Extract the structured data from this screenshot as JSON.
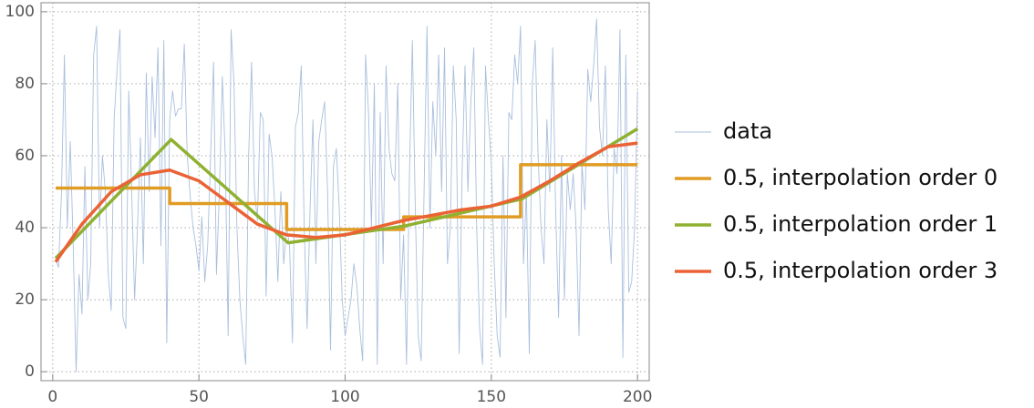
{
  "chart_data": {
    "type": "line",
    "xlim": [
      -4,
      204
    ],
    "ylim": [
      -2.5,
      102.5
    ],
    "xticks": [
      0,
      50,
      100,
      150,
      200
    ],
    "yticks": [
      0,
      20,
      40,
      60,
      80,
      100
    ],
    "grid": true,
    "series": [
      {
        "name": "data",
        "color": "#a9bfdd",
        "x": [
          1,
          2,
          3,
          4,
          5,
          6,
          7,
          8,
          9,
          10,
          11,
          12,
          13,
          14,
          15,
          16,
          17,
          18,
          19,
          20,
          21,
          22,
          23,
          24,
          25,
          26,
          27,
          28,
          29,
          30,
          31,
          32,
          33,
          34,
          35,
          36,
          37,
          38,
          39,
          40,
          41,
          42,
          43,
          44,
          45,
          46,
          47,
          48,
          49,
          50,
          51,
          52,
          53,
          54,
          55,
          56,
          57,
          58,
          59,
          60,
          61,
          62,
          63,
          64,
          65,
          66,
          67,
          68,
          69,
          70,
          71,
          72,
          73,
          74,
          75,
          76,
          77,
          78,
          79,
          80,
          81,
          82,
          83,
          84,
          85,
          86,
          87,
          88,
          89,
          90,
          91,
          92,
          93,
          94,
          95,
          96,
          97,
          98,
          99,
          100,
          101,
          102,
          103,
          104,
          105,
          106,
          107,
          108,
          109,
          110,
          111,
          112,
          113,
          114,
          115,
          116,
          117,
          118,
          119,
          120,
          121,
          122,
          123,
          124,
          125,
          126,
          127,
          128,
          129,
          130,
          131,
          132,
          133,
          134,
          135,
          136,
          137,
          138,
          139,
          140,
          141,
          142,
          143,
          144,
          145,
          146,
          147,
          148,
          149,
          150,
          151,
          152,
          153,
          154,
          155,
          156,
          157,
          158,
          159,
          160,
          161,
          162,
          163,
          164,
          165,
          166,
          167,
          168,
          169,
          170,
          171,
          172,
          173,
          174,
          175,
          176,
          177,
          178,
          179,
          180,
          181,
          182,
          183,
          184,
          185,
          186,
          187,
          188,
          189,
          190,
          191,
          192,
          193,
          194,
          195,
          196,
          197,
          198,
          199,
          200
        ],
        "values": [
          31,
          29,
          50,
          88,
          40,
          64,
          35,
          0,
          27,
          16,
          57,
          20,
          30,
          88,
          96,
          40,
          60,
          50,
          27,
          17,
          70,
          84,
          95,
          15,
          12,
          78,
          50,
          20,
          40,
          65,
          30,
          83,
          50,
          82,
          65,
          90,
          35,
          92,
          8,
          70,
          78,
          71,
          73,
          73,
          91,
          60,
          49,
          40,
          35,
          28,
          43,
          25,
          35,
          60,
          86,
          27,
          50,
          82,
          60,
          10,
          95,
          80,
          40,
          20,
          10,
          2,
          60,
          86,
          50,
          42,
          72,
          70,
          21,
          66,
          60,
          45,
          25,
          50,
          30,
          40,
          35,
          8,
          68,
          72,
          85,
          40,
          12,
          45,
          70,
          30,
          64,
          70,
          75,
          50,
          6,
          57,
          62,
          45,
          20,
          10,
          15,
          20,
          30,
          24,
          12,
          3,
          88,
          72,
          40,
          80,
          2,
          72,
          30,
          85,
          62,
          55,
          53,
          80,
          20,
          38,
          2,
          55,
          92,
          45,
          10,
          3,
          50,
          96,
          40,
          75,
          60,
          88,
          50,
          90,
          30,
          40,
          85,
          70,
          5,
          55,
          85,
          50,
          75,
          90,
          40,
          12,
          2,
          85,
          70,
          58,
          30,
          10,
          4,
          60,
          15,
          72,
          70,
          88,
          80,
          96,
          30,
          50,
          5,
          80,
          92,
          60,
          40,
          30,
          70,
          50,
          90,
          45,
          15,
          60,
          20,
          55,
          45,
          55,
          40,
          10,
          58,
          45,
          84,
          75,
          85,
          98,
          68,
          60,
          85,
          45,
          30,
          62,
          55,
          95,
          4,
          88,
          22,
          25,
          40,
          78
        ]
      },
      {
        "name": "0.5, interpolation order 0",
        "color": "#e09c24",
        "x": [
          1,
          40,
          40,
          80,
          80,
          120,
          120,
          160,
          160,
          200
        ],
        "values": [
          51,
          51,
          46.7,
          46.7,
          39.5,
          39.5,
          43,
          43,
          57.5,
          57.5
        ]
      },
      {
        "name": "0.5, interpolation order 1",
        "color": "#8fb131",
        "x": [
          1,
          40.5,
          80.5,
          120.5,
          160.5,
          200
        ],
        "values": [
          31.5,
          64.5,
          35.8,
          40.5,
          48,
          67.5
        ]
      },
      {
        "name": "0.5, interpolation order 3",
        "color": "#eb6235",
        "x": [
          1,
          10,
          20,
          30,
          40,
          50,
          60,
          70,
          80,
          90,
          100,
          110,
          120,
          130,
          140,
          150,
          160,
          170,
          180,
          190,
          200
        ],
        "values": [
          30.5,
          41,
          50,
          54.7,
          56,
          53,
          47,
          41,
          38,
          37.3,
          38,
          40,
          42,
          43.5,
          45,
          46,
          48.5,
          53,
          58,
          62.5,
          63.5
        ]
      }
    ]
  }
}
